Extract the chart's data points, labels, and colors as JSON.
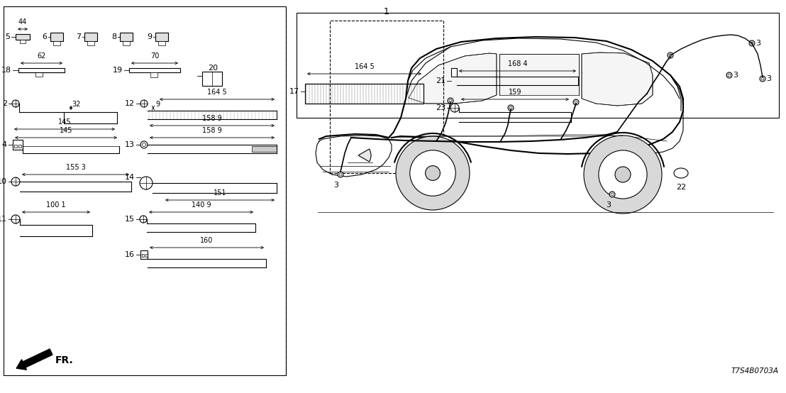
{
  "bg_color": "#ffffff",
  "part_number_label": "T7S4B0703A",
  "fr_label": "FR.",
  "dim_5": "44",
  "dim_18": "62",
  "dim_19": "70",
  "dim_2v": "32",
  "dim_2h": "145",
  "dim_12v": "9",
  "dim_12h": "164 5",
  "dim_12b": "158 9",
  "dim_4": "145",
  "dim_13": "158 9",
  "dim_10": "155 3",
  "dim_14": "151",
  "dim_15": "140 9",
  "dim_11": "100 1",
  "dim_16": "160",
  "dim_17": "164 5",
  "dim_21": "168 4",
  "dim_23": "159"
}
